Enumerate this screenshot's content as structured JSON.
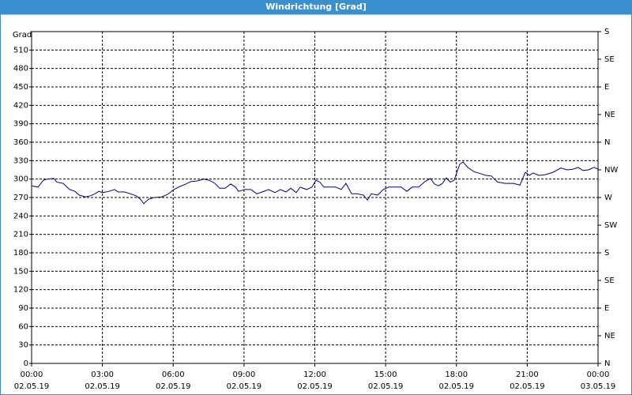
{
  "window_title": "Windrichtung [Grad]",
  "chart_data": {
    "type": "line",
    "y_label": "Grad",
    "x": [
      0,
      0.27,
      0.5,
      0.67,
      0.94,
      1.07,
      1.34,
      1.61,
      1.84,
      2.01,
      2.28,
      2.51,
      2.68,
      2.85,
      3.01,
      3.28,
      3.51,
      3.68,
      3.95,
      4.18,
      4.42,
      4.62,
      4.75,
      4.95,
      5.19,
      5.52,
      5.76,
      6.03,
      6.29,
      6.53,
      6.76,
      7.03,
      7.3,
      7.53,
      7.77,
      7.97,
      8.2,
      8.44,
      8.64,
      8.77,
      9.04,
      9.3,
      9.54,
      9.77,
      10.04,
      10.31,
      10.54,
      10.78,
      10.98,
      11.21,
      11.38,
      11.65,
      11.88,
      12.05,
      12.22,
      12.38,
      12.65,
      12.88,
      13.12,
      13.32,
      13.56,
      13.79,
      14.06,
      14.23,
      14.39,
      14.66,
      14.9,
      15.13,
      15.4,
      15.66,
      15.9,
      16.13,
      16.4,
      16.67,
      16.9,
      17.07,
      17.24,
      17.41,
      17.57,
      17.74,
      17.9,
      18.14,
      18.28,
      18.48,
      18.74,
      19.01,
      19.25,
      19.48,
      19.75,
      20.08,
      20.42,
      20.69,
      20.92,
      21.09,
      21.25,
      21.49,
      21.75,
      22.09,
      22.43,
      22.69,
      22.93,
      23.16,
      23.36,
      23.6,
      23.83,
      24
    ],
    "series": [
      {
        "name": "Windrichtung",
        "color": "#00008b",
        "values": [
          289,
          287,
          298,
          300,
          301,
          295,
          293,
          283,
          280,
          274,
          271,
          273,
          276,
          280,
          278,
          280,
          283,
          279,
          279,
          276,
          273,
          267,
          260,
          267,
          270,
          271,
          275,
          283,
          288,
          292,
          296,
          297,
          300,
          298,
          293,
          285,
          285,
          292,
          287,
          280,
          283,
          283,
          276,
          279,
          283,
          278,
          283,
          279,
          285,
          278,
          287,
          283,
          287,
          298,
          295,
          287,
          287,
          287,
          283,
          293,
          276,
          276,
          274,
          266,
          276,
          274,
          283,
          287,
          287,
          287,
          280,
          287,
          287,
          296,
          301,
          292,
          289,
          293,
          302,
          295,
          298,
          324,
          328,
          319,
          312,
          309,
          306,
          305,
          295,
          293,
          293,
          290,
          311,
          306,
          310,
          306,
          307,
          311,
          318,
          315,
          316,
          319,
          314,
          315,
          319,
          316
        ]
      }
    ],
    "xlim": [
      0,
      24
    ],
    "xticks": [
      {
        "value": 0,
        "label": [
          "00:00",
          "02.05.19"
        ]
      },
      {
        "value": 3,
        "label": [
          "03:00",
          "02.05.19"
        ]
      },
      {
        "value": 6,
        "label": [
          "06:00",
          "02.05.19"
        ]
      },
      {
        "value": 9,
        "label": [
          "09:00",
          "02.05.19"
        ]
      },
      {
        "value": 12,
        "label": [
          "12:00",
          "02.05.19"
        ]
      },
      {
        "value": 15,
        "label": [
          "15:00",
          "02.05.19"
        ]
      },
      {
        "value": 18,
        "label": [
          "18:00",
          "02.05.19"
        ]
      },
      {
        "value": 21,
        "label": [
          "21:00",
          "02.05.19"
        ]
      },
      {
        "value": 24,
        "label": [
          "00:00",
          "03.05.19"
        ]
      }
    ],
    "ylim": [
      0,
      540
    ],
    "yticks": [
      0,
      30,
      60,
      90,
      120,
      150,
      180,
      210,
      240,
      270,
      300,
      330,
      360,
      390,
      420,
      450,
      480,
      510
    ],
    "y2lim": [
      0,
      540
    ],
    "y2ticks": [
      {
        "value": 0,
        "label": "N"
      },
      {
        "value": 45,
        "label": "NE"
      },
      {
        "value": 90,
        "label": "E"
      },
      {
        "value": 135,
        "label": "SE"
      },
      {
        "value": 180,
        "label": "S"
      },
      {
        "value": 225,
        "label": "SW"
      },
      {
        "value": 270,
        "label": "W"
      },
      {
        "value": 315,
        "label": "NW"
      },
      {
        "value": 360,
        "label": "N"
      },
      {
        "value": 405,
        "label": "NE"
      },
      {
        "value": 450,
        "label": "E"
      },
      {
        "value": 495,
        "label": "SE"
      },
      {
        "value": 540,
        "label": "S"
      }
    ],
    "grid": true
  }
}
